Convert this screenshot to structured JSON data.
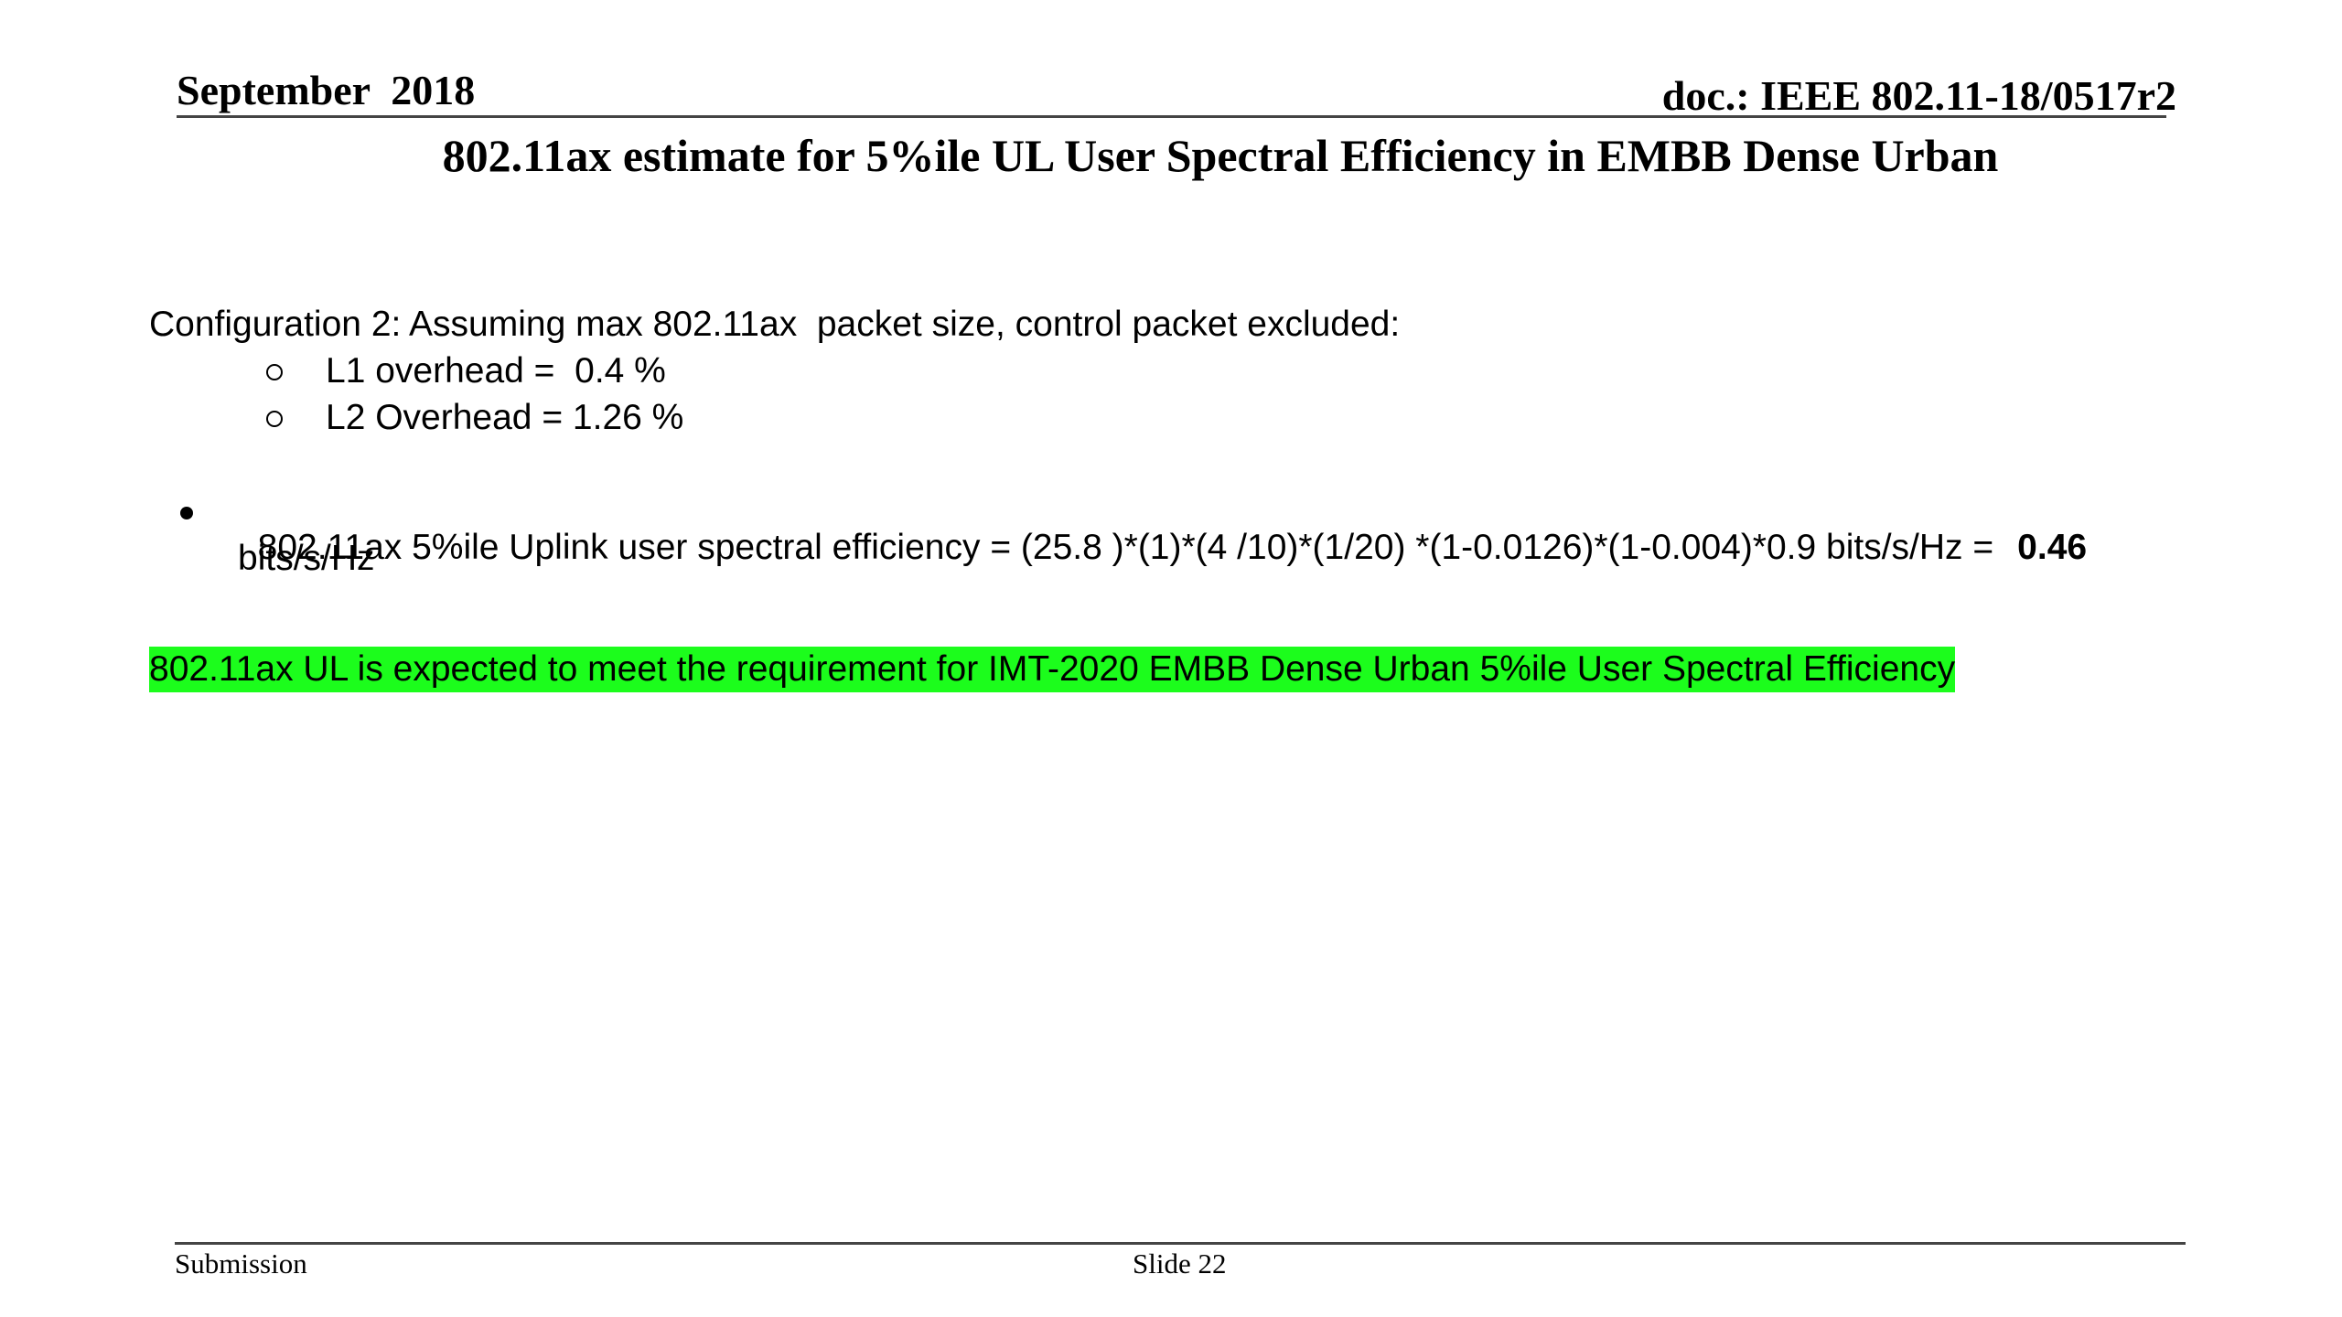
{
  "header": {
    "date": "September  2018",
    "doc_id": "doc.: IEEE 802.11-18/0517r2"
  },
  "title": "802.11ax estimate for 5%ile UL User Spectral Efficiency in EMBB Dense Urban",
  "config": {
    "heading": "Configuration 2: Assuming max 802.11ax  packet size, control packet excluded:",
    "items": [
      "L1 overhead =  0.4 %",
      "L2 Overhead = 1.26 %"
    ]
  },
  "bullet": {
    "text": "802.11ax 5%ile Uplink user spectral efficiency = (25.8 )*(1)*(4 /10)*(1/20) *(1-0.0126)*(1-0.004)*0.9 bits/s/Hz =",
    "result": "0.46",
    "unit": "bits/s/Hz"
  },
  "conclusion": "802.11ax UL is expected to meet the requirement for IMT-2020 EMBB Dense Urban 5%ile User Spectral Efficiency",
  "footer": {
    "left": "Submission",
    "center": "Slide 22"
  }
}
